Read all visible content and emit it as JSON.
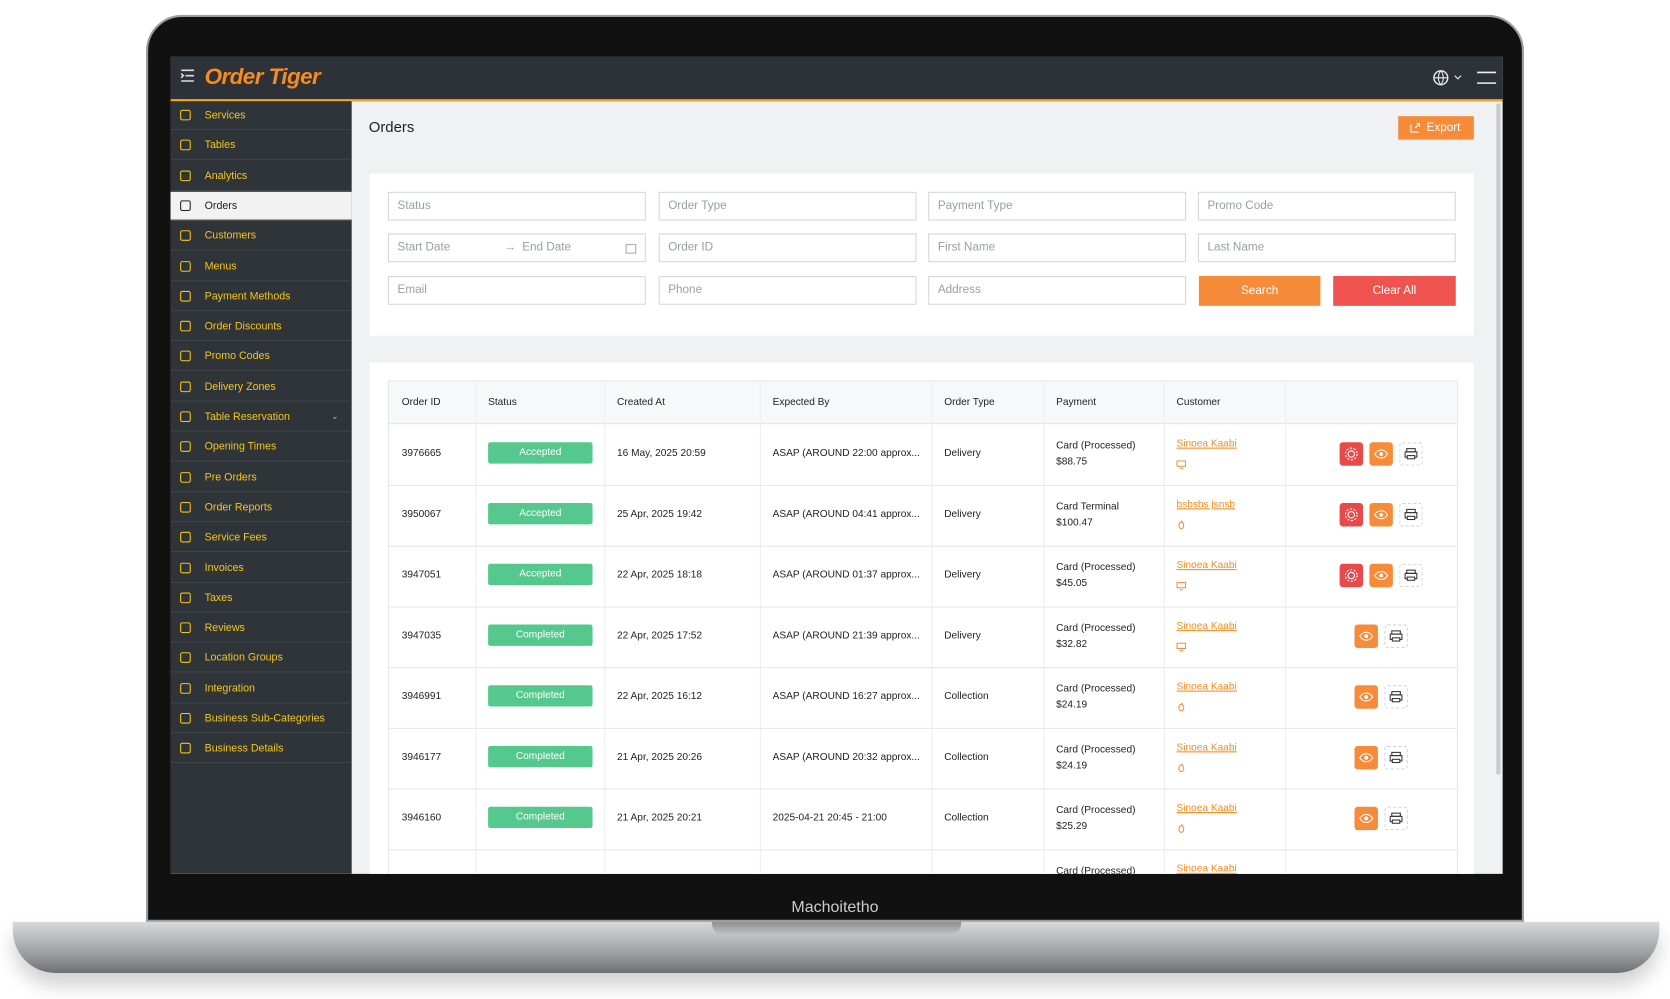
{
  "device_label": "Machoitetho",
  "header": {
    "brand": "Order Tiger"
  },
  "sidebar": {
    "items": [
      {
        "label": "Services"
      },
      {
        "label": "Tables"
      },
      {
        "label": "Analytics"
      },
      {
        "label": "Orders",
        "active": true
      },
      {
        "label": "Customers"
      },
      {
        "label": "Menus"
      },
      {
        "label": "Payment Methods"
      },
      {
        "label": "Order Discounts"
      },
      {
        "label": "Promo Codes"
      },
      {
        "label": "Delivery Zones"
      },
      {
        "label": "Table Reservation",
        "submenu": true
      },
      {
        "label": "Opening Times"
      },
      {
        "label": "Pre Orders"
      },
      {
        "label": "Order Reports"
      },
      {
        "label": "Service Fees"
      },
      {
        "label": "Invoices"
      },
      {
        "label": "Taxes"
      },
      {
        "label": "Reviews"
      },
      {
        "label": "Location Groups"
      },
      {
        "label": "Integration"
      },
      {
        "label": "Business Sub-Categories"
      },
      {
        "label": "Business Details"
      }
    ]
  },
  "page": {
    "title": "Orders",
    "export": "Export"
  },
  "filters": {
    "fields": [
      "Status",
      "Order Type",
      "Payment Type",
      "Promo Code",
      "Start Date",
      "End Date",
      "Order ID",
      "First Name",
      "Last Name",
      "Email",
      "Phone",
      "Address"
    ],
    "search": "Search",
    "clear": "Clear All"
  },
  "table": {
    "columns": [
      "Order ID",
      "Status",
      "Created At",
      "Expected By",
      "Order Type",
      "Payment",
      "Customer"
    ],
    "rows": [
      {
        "id": "3976665",
        "status": "Accepted",
        "created": "16 May, 2025 20:59",
        "expected": "ASAP (AROUND 22:00 approx...",
        "type": "Delivery",
        "payment": "Card (Processed)",
        "amount": "$88.75",
        "customer": "Sinoea Kaabi",
        "source": "web",
        "actions": [
          "settings",
          "view",
          "print"
        ]
      },
      {
        "id": "3950067",
        "status": "Accepted",
        "created": "25 Apr, 2025 19:42",
        "expected": "ASAP (AROUND 04:41 approx...",
        "type": "Delivery",
        "payment": "Card Terminal",
        "amount": "$100.47",
        "customer": "bsbsbs jsnsb",
        "source": "app",
        "actions": [
          "settings",
          "view",
          "print"
        ]
      },
      {
        "id": "3947051",
        "status": "Accepted",
        "created": "22 Apr, 2025 18:18",
        "expected": "ASAP (AROUND 01:37 approx...",
        "type": "Delivery",
        "payment": "Card (Processed)",
        "amount": "$45.05",
        "customer": "Sinoea Kaabi",
        "source": "web",
        "actions": [
          "settings",
          "view",
          "print"
        ]
      },
      {
        "id": "3947035",
        "status": "Completed",
        "created": "22 Apr, 2025 17:52",
        "expected": "ASAP (AROUND 21:39 approx...",
        "type": "Delivery",
        "payment": "Card (Processed)",
        "amount": "$32.82",
        "customer": "Sinoea Kaabi",
        "source": "web",
        "actions": [
          "view",
          "print"
        ]
      },
      {
        "id": "3946991",
        "status": "Completed",
        "created": "22 Apr, 2025 16:12",
        "expected": "ASAP (AROUND 16:27 approx...",
        "type": "Collection",
        "payment": "Card (Processed)",
        "amount": "$24.19",
        "customer": "Sinoea Kaabi",
        "source": "app",
        "actions": [
          "view",
          "print"
        ]
      },
      {
        "id": "3946177",
        "status": "Completed",
        "created": "21 Apr, 2025 20:26",
        "expected": "ASAP (AROUND 20:32 approx...",
        "type": "Collection",
        "payment": "Card (Processed)",
        "amount": "$24.19",
        "customer": "Sinoea Kaabi",
        "source": "app",
        "actions": [
          "view",
          "print"
        ]
      },
      {
        "id": "3946160",
        "status": "Completed",
        "created": "21 Apr, 2025 20:21",
        "expected": "2025-04-21 20:45 - 21:00",
        "type": "Collection",
        "payment": "Card (Processed)",
        "amount": "$25.29",
        "customer": "Sinoea Kaabi",
        "source": "app",
        "actions": [
          "view",
          "print"
        ]
      },
      {
        "payment": "Card (Processed)",
        "customer": "Sinoea Kaabi"
      }
    ]
  }
}
